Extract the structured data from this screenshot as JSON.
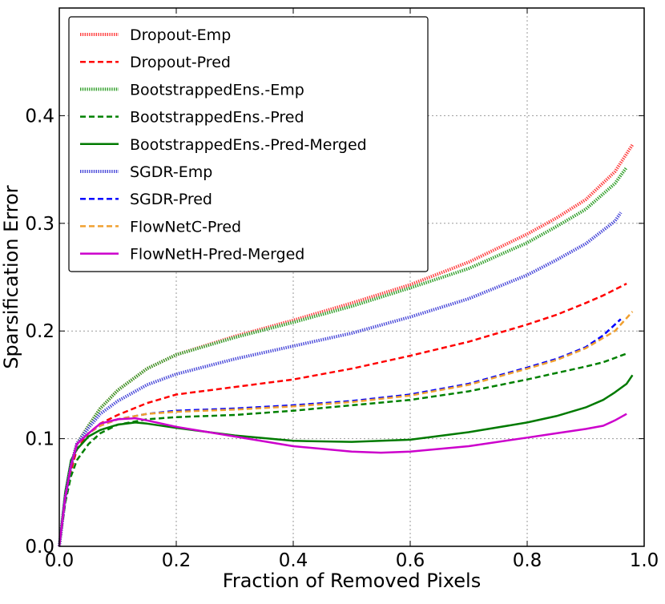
{
  "chart_data": {
    "type": "line",
    "title": "",
    "xlabel": "Fraction of  Removed Pixels",
    "ylabel": "Sparsification Error",
    "xlim": [
      0,
      1.0
    ],
    "ylim": [
      0,
      0.5
    ],
    "x_ticks": [
      0.0,
      0.2,
      0.4,
      0.6,
      0.8,
      1.0
    ],
    "x_tick_labels": [
      "0.0",
      "0.2",
      "0.4",
      "0.6",
      "0.8",
      "1.0"
    ],
    "y_ticks": [
      0.0,
      0.1,
      0.2,
      0.3,
      0.4
    ],
    "y_tick_labels": [
      "0.0",
      "0.1",
      "0.2",
      "0.3",
      "0.4"
    ],
    "grid": true,
    "legend_position": "top-left",
    "series": [
      {
        "name": "Dropout-Emp",
        "color": "#ff4040",
        "style": "dotted-thick",
        "x": [
          0,
          0.01,
          0.02,
          0.03,
          0.05,
          0.07,
          0.1,
          0.15,
          0.2,
          0.3,
          0.4,
          0.5,
          0.6,
          0.7,
          0.8,
          0.85,
          0.9,
          0.95,
          0.98
        ],
        "y": [
          0,
          0.045,
          0.075,
          0.095,
          0.112,
          0.128,
          0.145,
          0.165,
          0.178,
          0.195,
          0.21,
          0.226,
          0.243,
          0.264,
          0.29,
          0.305,
          0.322,
          0.348,
          0.373
        ]
      },
      {
        "name": "Dropout-Pred",
        "color": "#ff0000",
        "style": "dashed",
        "x": [
          0,
          0.01,
          0.02,
          0.03,
          0.05,
          0.07,
          0.1,
          0.15,
          0.2,
          0.3,
          0.4,
          0.5,
          0.6,
          0.7,
          0.8,
          0.85,
          0.9,
          0.93,
          0.97
        ],
        "y": [
          0,
          0.04,
          0.07,
          0.09,
          0.105,
          0.114,
          0.122,
          0.133,
          0.141,
          0.148,
          0.155,
          0.165,
          0.177,
          0.19,
          0.206,
          0.215,
          0.226,
          0.233,
          0.244
        ]
      },
      {
        "name": "BootstrappedEns.-Emp",
        "color": "#33a02c",
        "style": "dotted-thick",
        "x": [
          0,
          0.01,
          0.02,
          0.03,
          0.05,
          0.07,
          0.1,
          0.15,
          0.2,
          0.3,
          0.4,
          0.5,
          0.6,
          0.7,
          0.8,
          0.85,
          0.9,
          0.95,
          0.97
        ],
        "y": [
          0,
          0.045,
          0.075,
          0.095,
          0.112,
          0.128,
          0.145,
          0.165,
          0.178,
          0.194,
          0.208,
          0.223,
          0.24,
          0.258,
          0.282,
          0.297,
          0.313,
          0.337,
          0.352
        ]
      },
      {
        "name": "BootstrappedEns.-Pred",
        "color": "#008000",
        "style": "dashed",
        "x": [
          0,
          0.01,
          0.02,
          0.03,
          0.05,
          0.07,
          0.1,
          0.15,
          0.2,
          0.3,
          0.4,
          0.5,
          0.6,
          0.7,
          0.8,
          0.85,
          0.9,
          0.93,
          0.97
        ],
        "y": [
          0,
          0.04,
          0.065,
          0.08,
          0.095,
          0.105,
          0.113,
          0.118,
          0.12,
          0.122,
          0.126,
          0.131,
          0.136,
          0.144,
          0.155,
          0.161,
          0.167,
          0.171,
          0.179
        ]
      },
      {
        "name": "BootstrappedEns.-Pred-Merged",
        "color": "#007a00",
        "style": "solid",
        "x": [
          0,
          0.01,
          0.02,
          0.03,
          0.05,
          0.07,
          0.1,
          0.13,
          0.15,
          0.2,
          0.3,
          0.4,
          0.5,
          0.6,
          0.7,
          0.8,
          0.85,
          0.9,
          0.93,
          0.95,
          0.97,
          0.98
        ],
        "y": [
          0,
          0.05,
          0.08,
          0.09,
          0.102,
          0.108,
          0.113,
          0.115,
          0.114,
          0.11,
          0.103,
          0.098,
          0.097,
          0.099,
          0.106,
          0.115,
          0.121,
          0.129,
          0.136,
          0.143,
          0.151,
          0.159
        ]
      },
      {
        "name": "SGDR-Emp",
        "color": "#4a4ad9",
        "style": "dotted-thick",
        "x": [
          0,
          0.01,
          0.02,
          0.03,
          0.05,
          0.07,
          0.1,
          0.15,
          0.2,
          0.3,
          0.4,
          0.5,
          0.6,
          0.7,
          0.8,
          0.85,
          0.9,
          0.95,
          0.96
        ],
        "y": [
          0,
          0.045,
          0.075,
          0.095,
          0.11,
          0.123,
          0.135,
          0.15,
          0.16,
          0.174,
          0.186,
          0.198,
          0.213,
          0.23,
          0.252,
          0.266,
          0.281,
          0.302,
          0.31
        ]
      },
      {
        "name": "SGDR-Pred",
        "color": "#0000ff",
        "style": "dashed",
        "x": [
          0,
          0.01,
          0.02,
          0.03,
          0.05,
          0.07,
          0.1,
          0.15,
          0.2,
          0.3,
          0.4,
          0.5,
          0.6,
          0.7,
          0.8,
          0.85,
          0.9,
          0.93,
          0.96
        ],
        "y": [
          0,
          0.045,
          0.075,
          0.095,
          0.105,
          0.112,
          0.118,
          0.123,
          0.126,
          0.128,
          0.131,
          0.135,
          0.141,
          0.151,
          0.166,
          0.174,
          0.185,
          0.196,
          0.211
        ]
      },
      {
        "name": "FlowNetC-Pred",
        "color": "#f0a030",
        "style": "dashed",
        "x": [
          0,
          0.01,
          0.02,
          0.03,
          0.05,
          0.07,
          0.1,
          0.15,
          0.2,
          0.3,
          0.4,
          0.5,
          0.6,
          0.7,
          0.8,
          0.85,
          0.9,
          0.95,
          0.98
        ],
        "y": [
          0,
          0.045,
          0.075,
          0.095,
          0.105,
          0.112,
          0.118,
          0.123,
          0.125,
          0.127,
          0.13,
          0.134,
          0.14,
          0.15,
          0.165,
          0.173,
          0.184,
          0.2,
          0.218
        ]
      },
      {
        "name": "FlowNetH-Pred-Merged",
        "color": "#cc00cc",
        "style": "solid",
        "x": [
          0,
          0.01,
          0.02,
          0.03,
          0.05,
          0.07,
          0.1,
          0.13,
          0.15,
          0.2,
          0.3,
          0.4,
          0.5,
          0.55,
          0.6,
          0.7,
          0.8,
          0.85,
          0.9,
          0.93,
          0.95,
          0.97
        ],
        "y": [
          0,
          0.045,
          0.075,
          0.095,
          0.105,
          0.114,
          0.118,
          0.119,
          0.117,
          0.111,
          0.102,
          0.093,
          0.088,
          0.087,
          0.088,
          0.093,
          0.101,
          0.105,
          0.109,
          0.112,
          0.117,
          0.123
        ]
      }
    ]
  }
}
